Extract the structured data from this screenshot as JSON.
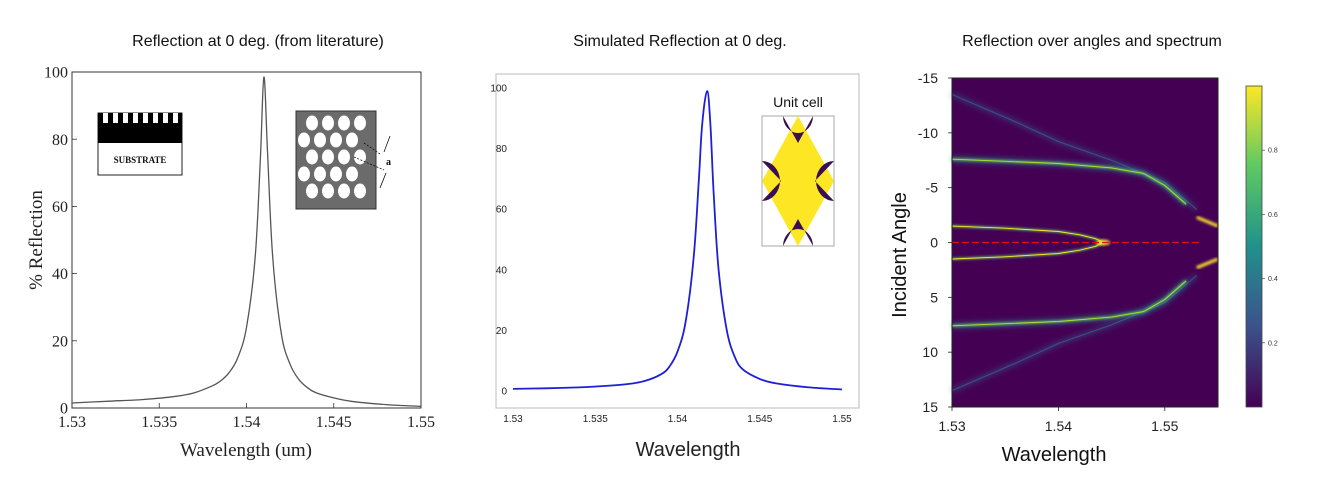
{
  "chart_data": [
    {
      "type": "line",
      "title": "Reflection at 0 deg. (from literature)",
      "xlabel": "Wavelength (um)",
      "ylabel": "% Reflection",
      "xlim": [
        1.53,
        1.55
      ],
      "ylim": [
        0,
        100
      ],
      "x_ticks": [
        "1.53",
        "1.535",
        "1.54",
        "1.545",
        "1.55"
      ],
      "y_ticks": [
        "0",
        "20",
        "40",
        "60",
        "80",
        "100"
      ],
      "color": "#555555",
      "series": [
        {
          "x": [
            1.53,
            1.532,
            1.534,
            1.536,
            1.537,
            1.538,
            1.5385,
            1.539,
            1.5395,
            1.54,
            1.5405,
            1.5408,
            1.541,
            1.5412,
            1.5415,
            1.542,
            1.5425,
            1.543,
            1.5435,
            1.544,
            1.545,
            1.546,
            1.548,
            1.55
          ],
          "y": [
            1.5,
            2,
            2.5,
            3.5,
            4.5,
            6.5,
            8,
            10.5,
            15,
            24,
            45,
            75,
            98.5,
            77,
            45,
            22,
            13,
            8.5,
            6,
            4.5,
            3,
            2,
            1,
            0.5
          ]
        }
      ],
      "inset_labels": [
        "SUBSTRATE",
        "a"
      ]
    },
    {
      "type": "line",
      "title": "Simulated Reflection at 0 deg.",
      "xlabel": "Wavelength",
      "ylabel": "",
      "xlim": [
        1.53,
        1.55
      ],
      "ylim": [
        0,
        100
      ],
      "x_ticks": [
        "1.53",
        "1.535",
        "1.54",
        "1.545",
        "1.55"
      ],
      "y_ticks": [
        "0",
        "20",
        "40",
        "60",
        "80",
        "100"
      ],
      "color": "#1f1fd6",
      "series": [
        {
          "x": [
            1.53,
            1.532,
            1.534,
            1.536,
            1.537,
            1.538,
            1.539,
            1.5395,
            1.54,
            1.5405,
            1.541,
            1.5413,
            1.5415,
            1.5418,
            1.542,
            1.5422,
            1.5425,
            1.543,
            1.5435,
            1.544,
            1.545,
            1.546,
            1.548,
            1.55
          ],
          "y": [
            0.7,
            0.9,
            1.2,
            1.8,
            2.3,
            3.3,
            5.5,
            8,
            13,
            23,
            45,
            70,
            88,
            99,
            88,
            65,
            40,
            20,
            11,
            7,
            4,
            2.5,
            1.2,
            0.5
          ]
        }
      ],
      "inset_title": "Unit cell"
    },
    {
      "type": "heatmap",
      "title": "Reflection over angles and spectrum",
      "xlabel": "Wavelength",
      "ylabel": "Incident Angle",
      "xlim": [
        1.53,
        1.555
      ],
      "ylim": [
        -15,
        15
      ],
      "x_ticks": [
        "1.53",
        "1.54",
        "1.55"
      ],
      "y_ticks": [
        "-15",
        "-10",
        "-5",
        "0",
        "5",
        "10",
        "15"
      ],
      "colorbar_ticks": [
        "0.2",
        "0.4",
        "0.6",
        "0.8"
      ],
      "colorbar_range": [
        0,
        1
      ],
      "colormap": "viridis",
      "bands": [
        {
          "x": [
            1.53,
            1.535,
            1.54,
            1.545,
            1.548,
            1.55,
            1.552
          ],
          "y": [
            7.6,
            7.4,
            7.2,
            6.8,
            6.3,
            5.2,
            3.5
          ]
        },
        {
          "x": [
            1.53,
            1.535,
            1.54,
            1.542,
            1.5435,
            1.5442
          ],
          "y": [
            1.5,
            1.3,
            1.0,
            0.7,
            0.35,
            0.0
          ]
        },
        {
          "x": [
            1.53,
            1.536,
            1.54,
            1.545,
            1.55,
            1.553
          ],
          "y": [
            13.5,
            11.0,
            9.2,
            7.5,
            5.5,
            3.0
          ]
        }
      ],
      "hotspot": {
        "x": [
          1.553,
          1.555
        ],
        "y": [
          2.3,
          1.5
        ]
      },
      "zero_line_color": "#dd1111"
    }
  ]
}
